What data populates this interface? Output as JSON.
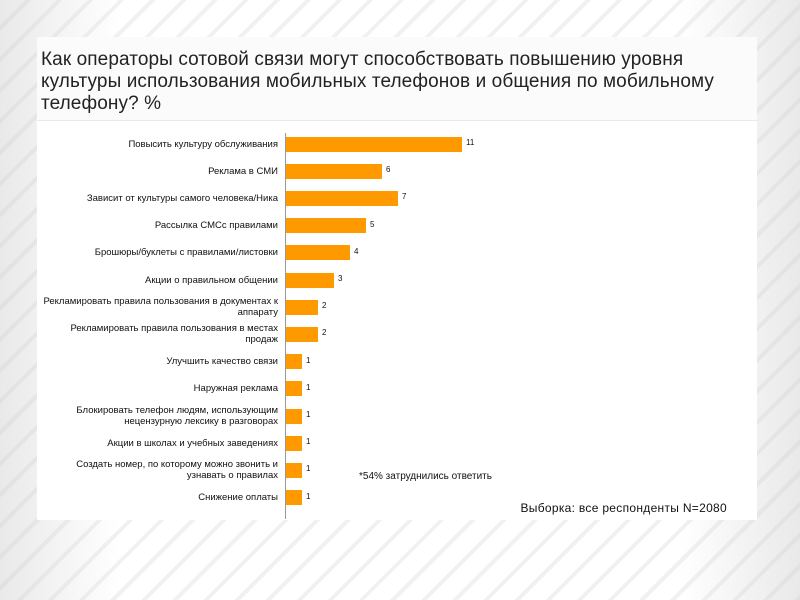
{
  "title": "Как операторы сотовой связи могут способствовать повышению уровня культуры использования мобильных телефонов и общения по мобильному телефону? %",
  "note": "*54% затруднились ответить",
  "sample": "Выборка: все респонденты N=2080",
  "chart_data": {
    "type": "bar",
    "orientation": "horizontal",
    "title": "Как операторы сотовой связи могут способствовать повышению уровня культуры использования мобильных телефонов и общения по мобильному телефону? %",
    "categories": [
      "Повысить культуру обслуживания",
      "Реклама в СМИ",
      "Зависит от культуры самого человека/Ника",
      "Рассылка СМСс правилами",
      "Брошюры/буклеты с правилами/листовки",
      "Акции о правильном общении",
      "Рекламировать правила пользования в документах к аппарату",
      "Рекламировать правила пользования в местах продаж",
      "Улучшить качество связи",
      "Наружная реклама",
      "Блокировать телефон людям, использующим нецензурную лексику в разговорах",
      "Акции в школах и учебных заведениях",
      "Создать номер, по которому можно звонить и узнавать о правилах",
      "Снижение оплаты"
    ],
    "values": [
      11,
      6,
      7,
      5,
      4,
      3,
      2,
      2,
      1,
      1,
      1,
      1,
      1,
      1
    ],
    "xlim": [
      0,
      11
    ],
    "bar_color": "#ff9900",
    "grid": false,
    "legend": "none"
  }
}
